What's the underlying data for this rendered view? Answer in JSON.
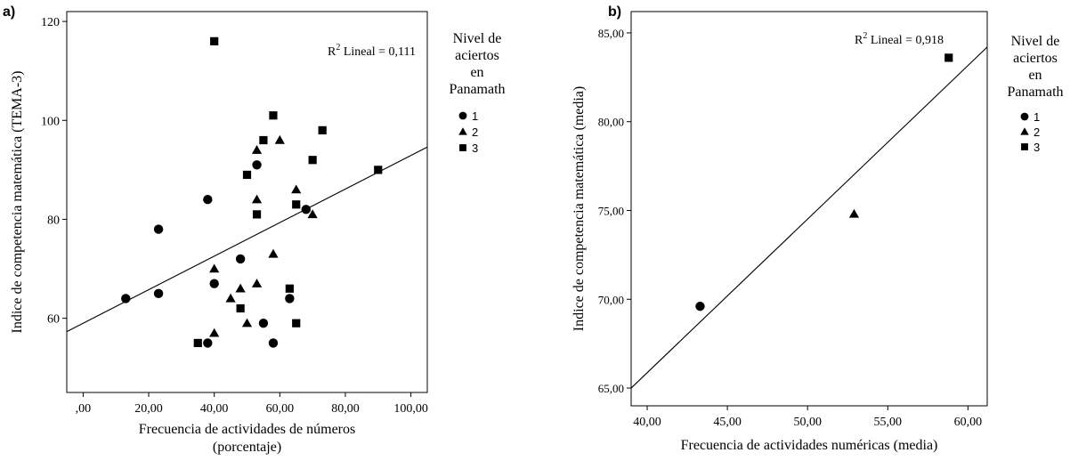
{
  "chart_data": [
    {
      "type": "scatter",
      "panel_label": "a)",
      "xlabel": "Frecuencia de actividades de números",
      "xlabel2": "(porcentaje)",
      "ylabel": "Indice de competencia matemática (TEMA-3)",
      "xlim": [
        -5,
        105
      ],
      "ylim": [
        45,
        122
      ],
      "xticks": [
        0,
        20,
        40,
        60,
        80,
        100
      ],
      "xtick_labels": [
        ",00",
        "20,00",
        "40,00",
        "60,00",
        "80,00",
        "100,00"
      ],
      "yticks": [
        60,
        80,
        100,
        120
      ],
      "ytick_labels": [
        "60",
        "80",
        "100",
        "120"
      ],
      "grid": false,
      "annotation": {
        "prefix": "R",
        "sup": "2",
        "text": " Lineal = 0,111"
      },
      "fit_line": {
        "x": [
          -5,
          105
        ],
        "y": [
          57.3,
          94.6
        ]
      },
      "legend": {
        "title_lines": [
          "Nivel de",
          "aciertos",
          "en",
          "Panamath"
        ],
        "placement": "right",
        "entries": [
          {
            "name": "1",
            "marker": "circle"
          },
          {
            "name": "2",
            "marker": "triangle"
          },
          {
            "name": "3",
            "marker": "square"
          }
        ]
      },
      "series": [
        {
          "name": "1",
          "marker": "circle",
          "points": [
            [
              13,
              64
            ],
            [
              23,
              78
            ],
            [
              23,
              65
            ],
            [
              38,
              84
            ],
            [
              38,
              55
            ],
            [
              40,
              67
            ],
            [
              48,
              72
            ],
            [
              53,
              91
            ],
            [
              55,
              59
            ],
            [
              58,
              55
            ],
            [
              63,
              64
            ],
            [
              68,
              82
            ]
          ]
        },
        {
          "name": "2",
          "marker": "triangle",
          "points": [
            [
              40,
              70
            ],
            [
              40,
              57
            ],
            [
              45,
              64
            ],
            [
              48,
              66
            ],
            [
              50,
              59
            ],
            [
              53,
              94
            ],
            [
              53,
              84
            ],
            [
              53,
              67
            ],
            [
              58,
              73
            ],
            [
              60,
              96
            ],
            [
              65,
              86
            ],
            [
              70,
              81
            ]
          ]
        },
        {
          "name": "3",
          "marker": "square",
          "points": [
            [
              35,
              55
            ],
            [
              40,
              116
            ],
            [
              48,
              62
            ],
            [
              50,
              89
            ],
            [
              53,
              81
            ],
            [
              55,
              96
            ],
            [
              58,
              101
            ],
            [
              63,
              66
            ],
            [
              65,
              83
            ],
            [
              65,
              59
            ],
            [
              70,
              92
            ],
            [
              73,
              98
            ],
            [
              90,
              90
            ]
          ]
        }
      ]
    },
    {
      "type": "scatter",
      "panel_label": "b)",
      "xlabel": "Frecuencia de actividades numéricas (media)",
      "ylabel": "Indice de competencia matemática (media)",
      "xlim": [
        39,
        61.2
      ],
      "ylim": [
        64,
        86.2
      ],
      "xticks": [
        40,
        45,
        50,
        55,
        60
      ],
      "xtick_labels": [
        "40,00",
        "45,00",
        "50,00",
        "55,00",
        "60,00"
      ],
      "yticks": [
        65,
        70,
        75,
        80,
        85
      ],
      "ytick_labels": [
        "65,00",
        "70,00",
        "75,00",
        "80,00",
        "85,00"
      ],
      "grid": false,
      "annotation": {
        "prefix": "R",
        "sup": "2",
        "text": " Lineal = 0,918"
      },
      "fit_line": {
        "x": [
          39,
          61.2
        ],
        "y": [
          65.0,
          84.2
        ]
      },
      "legend": {
        "title_lines": [
          "Nivel de",
          "aciertos",
          "en",
          "Panamath"
        ],
        "placement": "right",
        "entries": [
          {
            "name": "1",
            "marker": "circle"
          },
          {
            "name": "2",
            "marker": "triangle"
          },
          {
            "name": "3",
            "marker": "square"
          }
        ]
      },
      "series": [
        {
          "name": "1",
          "marker": "circle",
          "points": [
            [
              43.3,
              69.6
            ]
          ]
        },
        {
          "name": "2",
          "marker": "triangle",
          "points": [
            [
              52.9,
              74.8
            ]
          ]
        },
        {
          "name": "3",
          "marker": "square",
          "points": [
            [
              58.8,
              83.6
            ]
          ]
        }
      ]
    }
  ]
}
